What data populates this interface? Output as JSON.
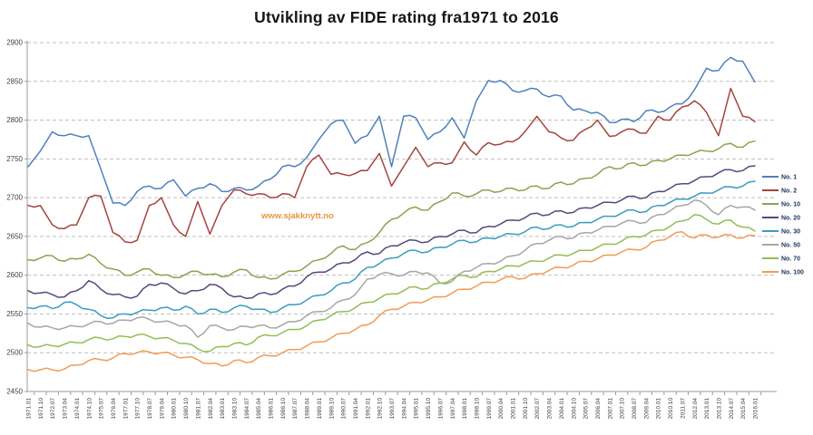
{
  "colors": {
    "title": "#161616",
    "axis": "#9b9b9b",
    "grid": "#bfbfbf",
    "tick_label": "#3f3f3f",
    "legend_text": "#1f3864",
    "watermark": "#e8953f",
    "background": "#ffffff"
  },
  "chart_data": {
    "type": "line",
    "title": "Utvikling av FIDE rating fra1971 to 2016",
    "watermark": "www.sjakknytt.no",
    "xlabel": "",
    "ylabel": "",
    "ylim": [
      2450,
      2900
    ],
    "ytick_step": 50,
    "yticks": [
      2450,
      2500,
      2550,
      2600,
      2650,
      2700,
      2750,
      2800,
      2850,
      2900
    ],
    "grid": "dashed-horizontal",
    "legend_position": "right",
    "x_labels": [
      "1971.01",
      "1971.10",
      "1972.07",
      "1973.04",
      "1974.01",
      "1974.10",
      "1975.07",
      "1976.04",
      "1977.01",
      "1977.10",
      "1978.07",
      "1979.04",
      "1980.01",
      "1980.10",
      "1981.07",
      "1982.04",
      "1983.01",
      "1983.10",
      "1984.07",
      "1985.04",
      "1986.01",
      "1986.10",
      "1987.07",
      "1988.04",
      "1989.01",
      "1989.10",
      "1990.07",
      "1991.04",
      "1992.01",
      "1992.10",
      "1993.07",
      "1994.04",
      "1995.01",
      "1995.10",
      "1996.07",
      "1997.04",
      "1998.01",
      "1998.10",
      "1999.07",
      "2000.04",
      "2001.01",
      "2001.10",
      "2002.07",
      "2003.04",
      "2004.01",
      "2004.10",
      "2005.07",
      "2006.04",
      "2007.01",
      "2007.10",
      "2008.07",
      "2009.04",
      "2010.01",
      "2010.10",
      "2011.07",
      "2012.04",
      "2013.01",
      "2013.10",
      "2014.07",
      "2015.04",
      "2016.01"
    ],
    "series": [
      {
        "name": "No. 1",
        "color": "#4f81bd",
        "values": [
          2740,
          2760,
          2785,
          2780,
          2780,
          2780,
          2737,
          2693,
          2690,
          2708,
          2715,
          2712,
          2723,
          2702,
          2712,
          2718,
          2708,
          2712,
          2710,
          2715,
          2724,
          2740,
          2740,
          2752,
          2775,
          2795,
          2800,
          2770,
          2780,
          2805,
          2740,
          2805,
          2803,
          2775,
          2785,
          2803,
          2777,
          2825,
          2851,
          2851,
          2838,
          2838,
          2840,
          2830,
          2831,
          2813,
          2812,
          2810,
          2797,
          2801,
          2798,
          2812,
          2810,
          2817,
          2821,
          2839,
          2867,
          2864,
          2881,
          2876,
          2849
        ]
      },
      {
        "name": "No. 2",
        "color": "#a5443e",
        "values": [
          2690,
          2690,
          2665,
          2660,
          2665,
          2700,
          2702,
          2655,
          2643,
          2645,
          2690,
          2700,
          2665,
          2650,
          2695,
          2653,
          2690,
          2710,
          2705,
          2705,
          2700,
          2705,
          2700,
          2740,
          2755,
          2730,
          2730,
          2731,
          2735,
          2757,
          2715,
          2740,
          2765,
          2740,
          2745,
          2745,
          2772,
          2755,
          2771,
          2769,
          2772,
          2785,
          2805,
          2785,
          2777,
          2774,
          2788,
          2800,
          2779,
          2785,
          2788,
          2783,
          2805,
          2800,
          2817,
          2825,
          2810,
          2780,
          2841,
          2805,
          2798
        ]
      },
      {
        "name": "No. 10",
        "color": "#89a54e",
        "values": [
          2620,
          2622,
          2625,
          2618,
          2621,
          2627,
          2615,
          2608,
          2600,
          2604,
          2608,
          2600,
          2597,
          2601,
          2605,
          2601,
          2598,
          2604,
          2607,
          2597,
          2595,
          2601,
          2605,
          2612,
          2620,
          2628,
          2638,
          2633,
          2642,
          2655,
          2672,
          2680,
          2688,
          2684,
          2695,
          2706,
          2702,
          2705,
          2710,
          2708,
          2712,
          2710,
          2715,
          2712,
          2720,
          2718,
          2725,
          2730,
          2740,
          2738,
          2745,
          2742,
          2748,
          2750,
          2755,
          2758,
          2760,
          2763,
          2770,
          2765,
          2773
        ]
      },
      {
        "name": "No. 20",
        "color": "#56497e",
        "values": [
          2580,
          2577,
          2575,
          2572,
          2580,
          2593,
          2582,
          2575,
          2572,
          2573,
          2588,
          2590,
          2583,
          2576,
          2580,
          2588,
          2583,
          2572,
          2570,
          2576,
          2575,
          2582,
          2586,
          2598,
          2604,
          2608,
          2616,
          2620,
          2630,
          2628,
          2638,
          2642,
          2645,
          2643,
          2650,
          2653,
          2658,
          2655,
          2663,
          2666,
          2671,
          2674,
          2680,
          2678,
          2683,
          2681,
          2687,
          2690,
          2694,
          2697,
          2702,
          2700,
          2708,
          2712,
          2718,
          2722,
          2727,
          2732,
          2736,
          2735,
          2741
        ]
      },
      {
        "name": "No. 30",
        "color": "#3a9dbf",
        "values": [
          2558,
          2560,
          2557,
          2565,
          2562,
          2556,
          2548,
          2545,
          2550,
          2552,
          2555,
          2558,
          2555,
          2560,
          2550,
          2556,
          2552,
          2558,
          2560,
          2556,
          2552,
          2558,
          2562,
          2568,
          2574,
          2580,
          2590,
          2595,
          2610,
          2615,
          2622,
          2628,
          2632,
          2630,
          2636,
          2640,
          2645,
          2643,
          2648,
          2650,
          2653,
          2656,
          2662,
          2660,
          2665,
          2663,
          2668,
          2672,
          2676,
          2680,
          2684,
          2682,
          2690,
          2694,
          2698,
          2702,
          2706,
          2710,
          2714,
          2715,
          2721
        ]
      },
      {
        "name": "No. 50",
        "color": "#a6a6a6",
        "values": [
          2538,
          2533,
          2532,
          2532,
          2534,
          2537,
          2540,
          2538,
          2542,
          2545,
          2543,
          2540,
          2538,
          2535,
          2520,
          2535,
          2532,
          2530,
          2534,
          2535,
          2532,
          2536,
          2540,
          2548,
          2553,
          2558,
          2568,
          2575,
          2595,
          2601,
          2602,
          2600,
          2605,
          2603,
          2590,
          2592,
          2605,
          2610,
          2615,
          2618,
          2625,
          2632,
          2641,
          2645,
          2650,
          2648,
          2655,
          2658,
          2663,
          2667,
          2670,
          2668,
          2678,
          2683,
          2690,
          2697,
          2690,
          2678,
          2690,
          2688,
          2684
        ]
      },
      {
        "name": "No. 70",
        "color": "#94bc56",
        "values": [
          2510,
          2508,
          2509,
          2511,
          2513,
          2517,
          2519,
          2518,
          2521,
          2523,
          2521,
          2519,
          2516,
          2512,
          2505,
          2502,
          2508,
          2512,
          2510,
          2520,
          2522,
          2526,
          2530,
          2535,
          2542,
          2548,
          2553,
          2558,
          2565,
          2570,
          2576,
          2580,
          2585,
          2583,
          2590,
          2595,
          2600,
          2598,
          2605,
          2608,
          2612,
          2615,
          2618,
          2622,
          2626,
          2628,
          2632,
          2636,
          2640,
          2644,
          2650,
          2652,
          2658,
          2663,
          2670,
          2678,
          2672,
          2666,
          2671,
          2662,
          2657
        ]
      },
      {
        "name": "No. 100",
        "color": "#f09c55",
        "values": [
          2478,
          2478,
          2478,
          2479,
          2484,
          2490,
          2491,
          2493,
          2499,
          2500,
          2501,
          2500,
          2497,
          2494,
          2491,
          2486,
          2483,
          2490,
          2487,
          2494,
          2496,
          2500,
          2504,
          2509,
          2514,
          2519,
          2525,
          2530,
          2536,
          2548,
          2556,
          2560,
          2565,
          2568,
          2572,
          2577,
          2582,
          2586,
          2591,
          2594,
          2598,
          2596,
          2602,
          2606,
          2610,
          2613,
          2618,
          2621,
          2626,
          2630,
          2633,
          2636,
          2645,
          2650,
          2656,
          2648,
          2652,
          2649,
          2652,
          2648,
          2651
        ]
      }
    ]
  }
}
